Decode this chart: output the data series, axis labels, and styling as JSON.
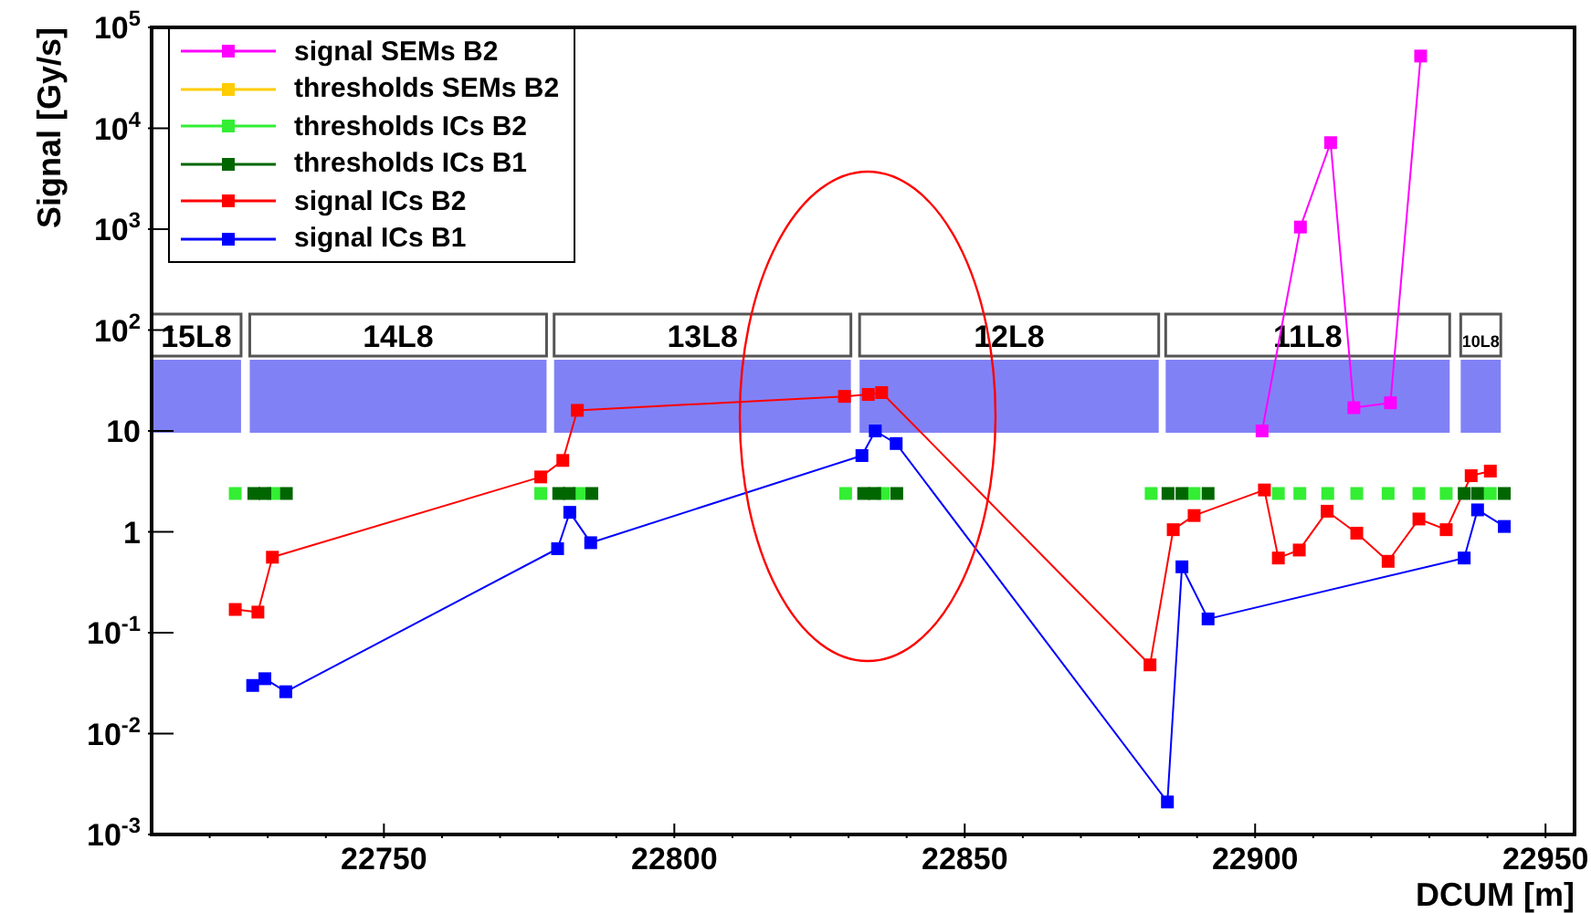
{
  "chart_data": {
    "type": "line",
    "xlabel": "DCUM [m]",
    "ylabel": "Signal [Gy/s]",
    "log": "y",
    "legend": "top left",
    "marker": "square",
    "xlim": [
      22710,
      22955
    ],
    "ylim": [
      0.001,
      100000
    ],
    "xticks": [
      {
        "value": 22720,
        "label": null
      },
      {
        "value": 22730,
        "label": null
      },
      {
        "value": 22740,
        "label": null
      },
      22750,
      {
        "value": 22760,
        "label": null
      },
      {
        "value": 22770,
        "label": null
      },
      {
        "value": 22780,
        "label": null
      },
      {
        "value": 22790,
        "label": null
      },
      22800,
      {
        "value": 22810,
        "label": null
      },
      {
        "value": 22820,
        "label": null
      },
      {
        "value": 22830,
        "label": null
      },
      {
        "value": 22840,
        "label": null
      },
      22850,
      {
        "value": 22860,
        "label": null
      },
      {
        "value": 22870,
        "label": null
      },
      {
        "value": 22880,
        "label": null
      },
      {
        "value": 22890,
        "label": null
      },
      22900,
      {
        "value": 22910,
        "label": null
      },
      {
        "value": 22920,
        "label": null
      },
      {
        "value": 22930,
        "label": null
      },
      {
        "value": 22940,
        "label": null
      },
      22950
    ],
    "yticks": [
      {
        "value": 0.001,
        "label": "10$^{-3}$"
      },
      {
        "value": 0.01,
        "label": "10$^{-2}$"
      },
      {
        "value": 0.1,
        "label": "10$^{-1}$"
      },
      1,
      10,
      {
        "value": 100,
        "label": "10$^{2}$"
      },
      {
        "value": 1000,
        "label": "10$^{3}$"
      },
      {
        "value": 10000,
        "label": "10$^{4}$"
      },
      {
        "value": 100000,
        "label": "10$^{5}$"
      }
    ],
    "bands": [
      {
        "axis": "x",
        "from": 22710,
        "to": 22725.4,
        "label": "15L8",
        "color": "#6b6bf5"
      },
      {
        "axis": "x",
        "from": 22726.9,
        "to": 22778,
        "label": "14L8",
        "color": "#6b6bf5"
      },
      {
        "axis": "x",
        "from": 22779.3,
        "to": 22830.4,
        "label": "13L8",
        "color": "#6b6bf5"
      },
      {
        "axis": "x",
        "from": 22831.9,
        "to": 22883.4,
        "label": "12L8",
        "color": "#6b6bf5"
      },
      {
        "axis": "x",
        "from": 22884.6,
        "to": 22933.5,
        "label": "11L8",
        "color": "#6b6bf5"
      },
      {
        "axis": "x",
        "from": 22935.4,
        "to": 22942.3,
        "label": "10L8",
        "color": "#6b6bf5"
      }
    ],
    "series": [
      {
        "name": "signal SEMs B2",
        "color": "#ff00ff",
        "x": [
          22901.2,
          22907.8,
          22913,
          22917,
          22923.3,
          22928.5
        ],
        "values": [
          10,
          1050,
          7200,
          17,
          19,
          52000
        ]
      },
      {
        "name": "thresholds SEMs B2",
        "type": "scatter",
        "color": "#ffcc00"
      },
      {
        "name": "thresholds ICs B2",
        "type": "scatter",
        "color": "#33ee33",
        "x": [
          22724.4,
          22731,
          22777,
          22783.6,
          22829.5,
          22836,
          22882.1,
          22889.5,
          22901.6,
          22904,
          22907.7,
          22912.5,
          22917.5,
          22922.9,
          22928.2,
          22932.9,
          22940.5
        ],
        "values": [
          2.4,
          2.4,
          2.4,
          2.4,
          2.4,
          2.4,
          2.4,
          2.4,
          null,
          2.4,
          2.4,
          2.4,
          2.4,
          2.4,
          2.4,
          2.4,
          2.4
        ]
      },
      {
        "name": "thresholds ICs B1",
        "type": "scatter",
        "color": "#006600",
        "x": [
          22727.6,
          22729.5,
          22733.2,
          22780.1,
          22781.9,
          22785.8,
          22832.6,
          22834.5,
          22838.3,
          22885,
          22887.4,
          22891.9,
          22936,
          22938.3,
          22942.9
        ],
        "values": [
          2.4,
          2.4,
          2.4,
          2.4,
          2.4,
          2.4,
          2.4,
          2.4,
          2.4,
          2.4,
          2.4,
          2.4,
          2.4,
          2.4,
          2.4
        ]
      },
      {
        "name": "signal ICs B2",
        "color": "#ff0000",
        "x": [
          22724.4,
          22728.3,
          22730.8,
          22777,
          22780.8,
          22783.3,
          22829.3,
          22833.4,
          22835.7,
          22881.9,
          22885.9,
          22889.5,
          22901.6,
          22904,
          22907.6,
          22912.4,
          22917.5,
          22922.9,
          22928.2,
          22932.9,
          22937.2,
          22940.5
        ],
        "values": [
          0.17,
          0.16,
          0.56,
          3.5,
          5.1,
          16,
          22,
          23,
          24,
          0.048,
          1.05,
          1.45,
          2.6,
          0.55,
          0.66,
          1.6,
          0.97,
          0.51,
          1.34,
          1.05,
          3.6,
          4
        ]
      },
      {
        "name": "signal ICs B1",
        "color": "#0000ff",
        "x": [
          22727.4,
          22729.5,
          22733.1,
          22779.9,
          22782,
          22785.6,
          22832.3,
          22834.6,
          22838.2,
          22884.9,
          22887.4,
          22891.9,
          22936,
          22938.3,
          22942.9
        ],
        "values": [
          0.03,
          0.035,
          0.026,
          0.68,
          1.56,
          0.78,
          5.7,
          10,
          7.5,
          0.0021,
          0.45,
          0.137,
          0.55,
          1.65,
          1.13
        ]
      }
    ]
  }
}
